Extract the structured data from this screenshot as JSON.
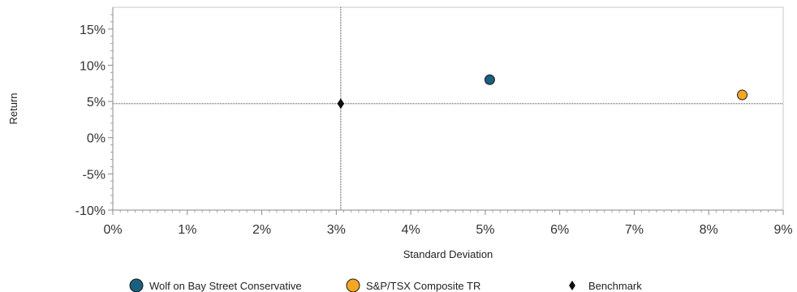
{
  "chart_data": {
    "type": "scatter",
    "xlabel": "Standard Deviation",
    "ylabel": "Return",
    "xlim": [
      0,
      9
    ],
    "ylim": [
      -10,
      18
    ],
    "x_ticks": [
      {
        "value": 0,
        "label": "0%"
      },
      {
        "value": 1,
        "label": "1%"
      },
      {
        "value": 2,
        "label": "2%"
      },
      {
        "value": 3,
        "label": "3%"
      },
      {
        "value": 4,
        "label": "4%"
      },
      {
        "value": 5,
        "label": "5%"
      },
      {
        "value": 6,
        "label": "6%"
      },
      {
        "value": 7,
        "label": "7%"
      },
      {
        "value": 8,
        "label": "8%"
      },
      {
        "value": 9,
        "label": "9%"
      }
    ],
    "y_ticks": [
      {
        "value": -10,
        "label": "-10%"
      },
      {
        "value": -5,
        "label": "-5%"
      },
      {
        "value": 0,
        "label": "0%"
      },
      {
        "value": 5,
        "label": "5%"
      },
      {
        "value": 10,
        "label": "10%"
      },
      {
        "value": 15,
        "label": "15%"
      }
    ],
    "grid": false,
    "legend_position": "bottom",
    "reference_lines": {
      "x": 3.06,
      "y": 4.7
    },
    "series": [
      {
        "name": "Wolf on Bay Street Conservative",
        "marker": "circle",
        "color": "#1b5f7f",
        "x": 5.06,
        "y": 8.0
      },
      {
        "name": "S&P/TSX Composite TR",
        "marker": "circle",
        "color": "#f5a623",
        "x": 8.45,
        "y": 5.9
      },
      {
        "name": "Benchmark",
        "marker": "diamond",
        "color": "#111111",
        "x": 3.06,
        "y": 4.7
      }
    ]
  }
}
